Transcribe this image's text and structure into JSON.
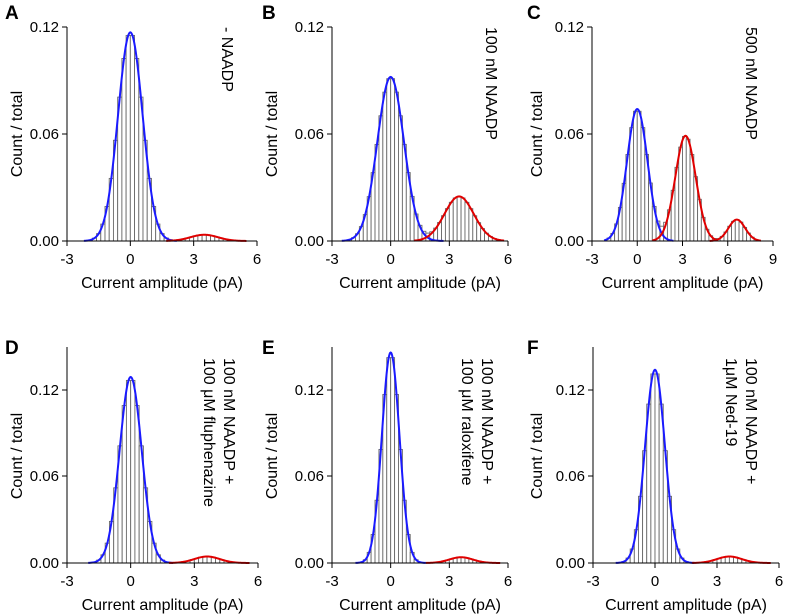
{
  "chart_data": [
    {
      "panel": "A",
      "type": "bar",
      "xlabel": "Current amplitude (pA)",
      "ylabel": "Count / total",
      "xlim": [
        -3,
        6
      ],
      "ylim": [
        0,
        0.12
      ],
      "xticks": [
        "-3",
        "0",
        "3",
        "6"
      ],
      "yticks": [
        "0.00",
        "0.06",
        "0.12"
      ],
      "annotation_lines": [
        "- NAADP"
      ],
      "bin_width": 0.2,
      "series": [
        {
          "color": "#1a1aff",
          "mu": 0,
          "sigma": 0.58,
          "amp": 0.117,
          "range": [
            -2.2,
            2.2
          ]
        },
        {
          "color": "#e00000",
          "mu": 3.5,
          "sigma": 0.65,
          "amp": 0.0035,
          "range": [
            1.7,
            5.5
          ]
        }
      ]
    },
    {
      "panel": "B",
      "type": "bar",
      "xlabel": "Current amplitude (pA)",
      "ylabel": "Count / total",
      "xlim": [
        -3,
        6
      ],
      "ylim": [
        0,
        0.12
      ],
      "xticks": [
        "-3",
        "0",
        "3",
        "6"
      ],
      "yticks": [
        "0.00",
        "0.06",
        "0.12"
      ],
      "annotation_lines": [
        "100 nM NAADP"
      ],
      "bin_width": 0.2,
      "series": [
        {
          "color": "#1a1aff",
          "mu": 0,
          "sigma": 0.68,
          "amp": 0.092,
          "range": [
            -2.5,
            2.7
          ]
        },
        {
          "color": "#e00000",
          "mu": 3.5,
          "sigma": 0.75,
          "amp": 0.025,
          "range": [
            1.2,
            5.8
          ]
        }
      ]
    },
    {
      "panel": "C",
      "type": "bar",
      "xlabel": "Current amplitude (pA)",
      "ylabel": "Count / total",
      "xlim": [
        -3,
        9
      ],
      "ylim": [
        0,
        0.12
      ],
      "xticks": [
        "-3",
        "0",
        "3",
        "6",
        "9"
      ],
      "yticks": [
        "0.00",
        "0.06",
        "0.12"
      ],
      "annotation_lines": [
        "500 nM NAADP"
      ],
      "bin_width": 0.25,
      "series": [
        {
          "color": "#1a1aff",
          "mu": 0,
          "sigma": 0.68,
          "amp": 0.074,
          "range": [
            -2.2,
            2.4
          ]
        },
        {
          "color": "#e00000",
          "mu": 3.2,
          "sigma": 0.68,
          "amp": 0.059,
          "range": [
            1.0,
            5.2
          ]
        },
        {
          "color": "#e00000",
          "mu": 6.6,
          "sigma": 0.55,
          "amp": 0.012,
          "range": [
            4.8,
            8.2
          ]
        }
      ]
    },
    {
      "panel": "D",
      "type": "bar",
      "xlabel": "Current amplitude (pA)",
      "ylabel": "Count / total",
      "xlim": [
        -3,
        6
      ],
      "ylim": [
        0,
        0.14
      ],
      "xticks": [
        "-3",
        "0",
        "3",
        "6"
      ],
      "yticks": [
        "0.00",
        "0.06",
        "0.12"
      ],
      "annotation_lines": [
        "100 nM NAADP +",
        "100 μM fluphenazine"
      ],
      "bin_width": 0.2,
      "series": [
        {
          "color": "#1a1aff",
          "mu": 0,
          "sigma": 0.52,
          "amp": 0.129,
          "range": [
            -2.0,
            2.0
          ]
        },
        {
          "color": "#e00000",
          "mu": 3.6,
          "sigma": 0.6,
          "amp": 0.0045,
          "range": [
            1.8,
            5.6
          ]
        }
      ]
    },
    {
      "panel": "E",
      "type": "bar",
      "xlabel": "Current amplitude (pA)",
      "ylabel": "Count / total",
      "xlim": [
        -3,
        6
      ],
      "ylim": [
        0,
        0.155
      ],
      "xticks": [
        "-3",
        "0",
        "3",
        "6"
      ],
      "yticks": [
        "0.00",
        "0.06",
        "0.12"
      ],
      "annotation_lines": [
        "100 nM NAADP +",
        "100 μM raloxifene"
      ],
      "bin_width": 0.2,
      "series": [
        {
          "color": "#1a1aff",
          "mu": 0,
          "sigma": 0.45,
          "amp": 0.146,
          "range": [
            -1.8,
            1.8
          ]
        },
        {
          "color": "#e00000",
          "mu": 3.6,
          "sigma": 0.6,
          "amp": 0.004,
          "range": [
            1.8,
            5.6
          ]
        }
      ]
    },
    {
      "panel": "F",
      "type": "bar",
      "xlabel": "Current amplitude (pA)",
      "ylabel": "Count / total",
      "xlim": [
        -3,
        6
      ],
      "ylim": [
        0,
        0.14
      ],
      "xticks": [
        "-3",
        "0",
        "3",
        "6"
      ],
      "yticks": [
        "0.00",
        "0.06",
        "0.12"
      ],
      "annotation_lines": [
        "100 nM  NAADP +",
        "1μM Ned-19"
      ],
      "bin_width": 0.2,
      "series": [
        {
          "color": "#1a1aff",
          "mu": 0,
          "sigma": 0.48,
          "amp": 0.134,
          "range": [
            -1.9,
            1.9
          ]
        },
        {
          "color": "#e00000",
          "mu": 3.6,
          "sigma": 0.6,
          "amp": 0.0045,
          "range": [
            1.8,
            5.6
          ]
        }
      ]
    }
  ]
}
